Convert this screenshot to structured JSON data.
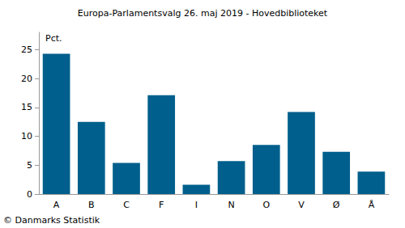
{
  "chart_data": {
    "type": "bar",
    "title": "Europa-Parlamentsvalg 26. maj 2019 - Hovedbiblioteket",
    "ylabel": "Pct.",
    "annotation": "© Danmarks Statistik",
    "categories": [
      "A",
      "B",
      "C",
      "F",
      "I",
      "N",
      "O",
      "V",
      "Ø",
      "Å"
    ],
    "values": [
      24.3,
      12.5,
      5.4,
      17.1,
      1.6,
      5.7,
      8.5,
      14.2,
      7.3,
      3.9
    ],
    "color": "#005f8c",
    "ylim": [
      0,
      28
    ],
    "yticks": [
      0,
      5,
      10,
      15,
      20,
      25
    ],
    "grid": false
  }
}
